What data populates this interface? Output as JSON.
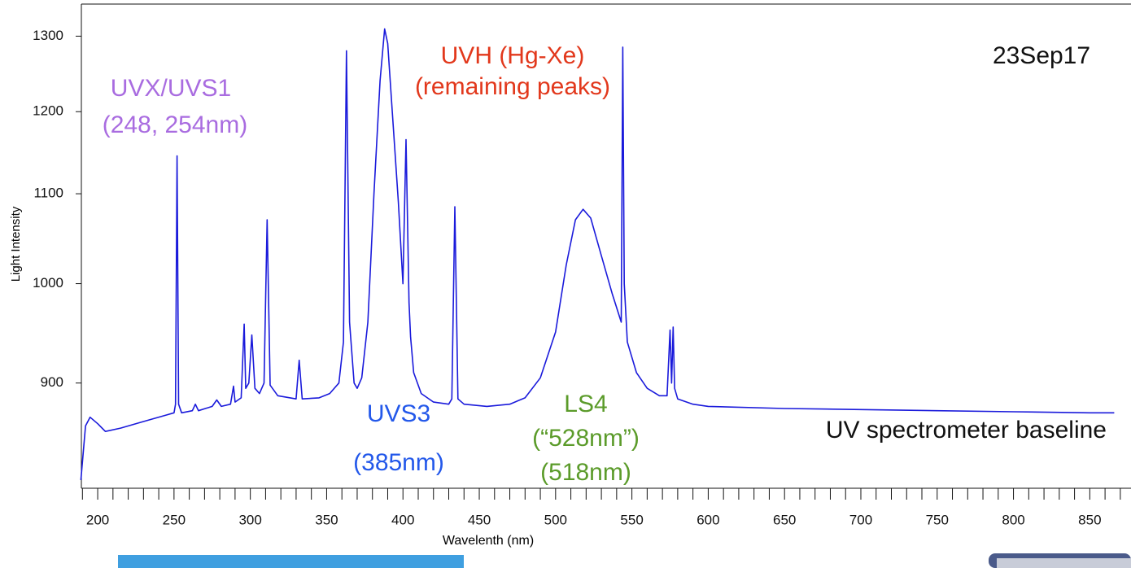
{
  "chart_data": {
    "type": "line",
    "x_label": "Wavelenth (nm)",
    "y_label": "Light Intensity",
    "x": [
      189,
      192,
      195,
      200,
      205,
      215,
      230,
      245,
      250,
      251,
      252,
      253,
      255,
      262,
      264,
      266,
      275,
      278,
      281,
      287,
      289,
      290,
      294,
      296,
      297,
      299,
      301,
      303,
      306,
      309,
      311,
      313,
      318,
      330,
      332,
      334,
      345,
      352,
      358,
      361,
      363,
      365,
      368,
      370,
      373,
      377,
      381,
      385,
      388,
      390,
      393,
      397,
      400,
      402,
      404,
      405,
      407,
      412,
      420,
      430,
      432,
      434,
      436,
      440,
      455,
      470,
      480,
      490,
      500,
      507,
      513,
      518,
      523,
      530,
      537,
      542,
      543,
      544,
      545,
      547,
      553,
      560,
      568,
      573,
      575,
      576,
      577,
      578,
      580,
      590,
      600,
      650,
      700,
      750,
      800,
      850,
      866
    ],
    "values": [
      812,
      860,
      868,
      862,
      855,
      858,
      864,
      870,
      872,
      880,
      1145,
      880,
      872,
      874,
      880,
      874,
      878,
      884,
      878,
      880,
      897,
      882,
      886,
      958,
      895,
      900,
      947,
      895,
      890,
      900,
      1070,
      898,
      888,
      885,
      922,
      885,
      886,
      890,
      900,
      940,
      1280,
      960,
      900,
      895,
      905,
      960,
      1100,
      1240,
      1310,
      1290,
      1200,
      1090,
      1000,
      1165,
      980,
      945,
      910,
      890,
      882,
      880,
      885,
      1085,
      885,
      880,
      878,
      880,
      886,
      905,
      950,
      1020,
      1070,
      1082,
      1072,
      1030,
      990,
      965,
      960,
      1285,
      1000,
      940,
      910,
      895,
      888,
      888,
      952,
      900,
      955,
      895,
      885,
      880,
      878,
      876,
      875,
      874,
      873,
      872,
      872
    ],
    "color": "#1a1adb",
    "xlim": [
      189.3,
      877
    ],
    "xticks": [
      200,
      250,
      300,
      350,
      400,
      450,
      500,
      550,
      600,
      650,
      700,
      750,
      800,
      850
    ],
    "xminorticks": [
      190,
      210,
      220,
      230,
      240,
      260,
      270,
      280,
      290,
      310,
      320,
      330,
      340,
      360,
      370,
      380,
      390,
      410,
      420,
      430,
      440,
      460,
      470,
      480,
      490,
      510,
      520,
      530,
      540,
      560,
      570,
      580,
      590,
      610,
      620,
      630,
      640,
      660,
      670,
      680,
      690,
      710,
      720,
      730,
      740,
      760,
      770,
      780,
      790,
      810,
      820,
      830,
      840,
      860,
      870
    ],
    "ylim": [
      805,
      1345
    ],
    "yticks": [
      900,
      1000,
      1100,
      1200,
      1300
    ],
    "log_y": true,
    "annotations": [
      {
        "text": "UVX/UVS1",
        "color": "#a96ce0"
      },
      {
        "text": "(248, 254nm)",
        "color": "#a96ce0"
      },
      {
        "text": "UVH (Hg-Xe)",
        "color": "#e2381c"
      },
      {
        "text": "(remaining peaks)",
        "color": "#e2381c"
      },
      {
        "text": "23Sep17",
        "color": "#111111"
      },
      {
        "text": "UVS3",
        "color": "#2358ea"
      },
      {
        "text": "(385nm)",
        "color": "#2358ea"
      },
      {
        "text": "LS4",
        "color": "#5b9b2a"
      },
      {
        "text": "(“528nm”)",
        "color": "#5b9b2a"
      },
      {
        "text": "(518nm)",
        "color": "#5b9b2a"
      },
      {
        "text": "UV spectrometer baseline",
        "color": "#111111"
      }
    ]
  }
}
